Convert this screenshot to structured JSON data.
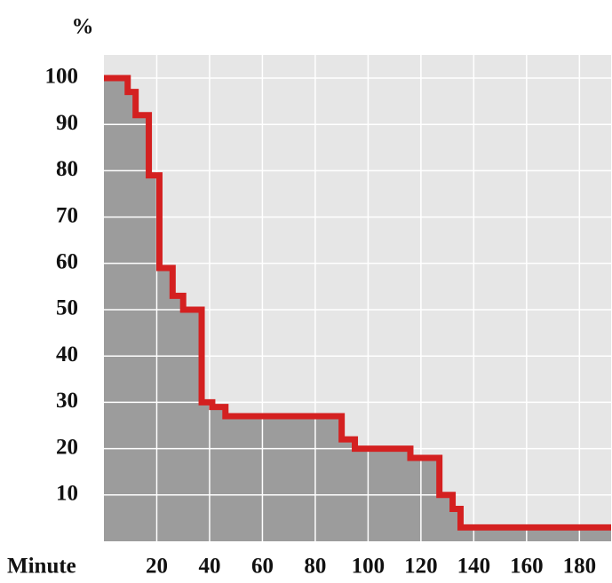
{
  "chart_data": {
    "type": "step",
    "y_label": "%",
    "x_label": "Minute",
    "x": [
      0,
      9,
      12,
      17,
      21,
      26,
      30,
      37,
      41,
      46,
      90,
      95,
      116,
      127,
      132,
      135,
      192
    ],
    "values": [
      100,
      97,
      92,
      79,
      59,
      53,
      50,
      30,
      29,
      27,
      22,
      20,
      18,
      10,
      7,
      3,
      3
    ],
    "color": "#d42020",
    "fill": "#9c9c9c",
    "background": "#e6e6e6",
    "xlim": [
      0,
      192
    ],
    "ylim": [
      0,
      100
    ],
    "xticks": [
      20,
      40,
      60,
      80,
      100,
      120,
      140,
      160,
      180
    ],
    "yticks": [
      10,
      20,
      30,
      40,
      50,
      60,
      70,
      80,
      90,
      100
    ],
    "grid": true
  }
}
